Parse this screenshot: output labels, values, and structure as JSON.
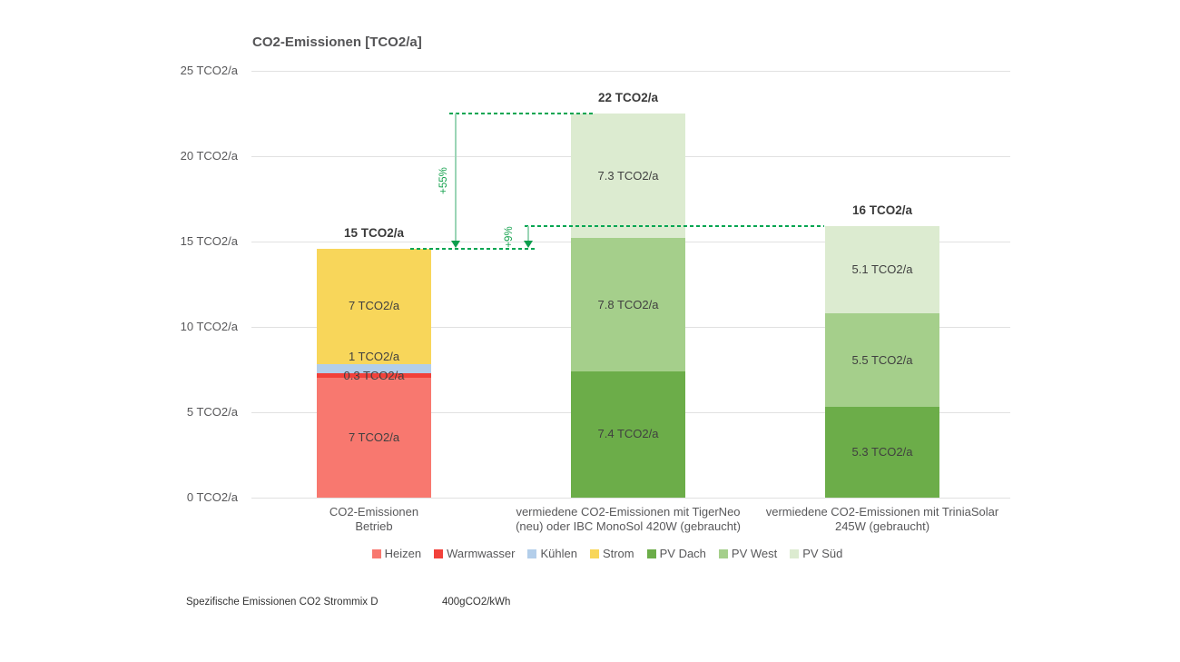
{
  "chart_data": {
    "type": "bar",
    "stacked": true,
    "title": "CO2-Emissionen [TCO2/a]",
    "unit": "TCO2/a",
    "y_axis": {
      "min": 0,
      "max": 25,
      "grid": true,
      "ticks": [
        {
          "value": 0,
          "label": "0 TCO2/a"
        },
        {
          "value": 5,
          "label": "5 TCO2/a"
        },
        {
          "value": 10,
          "label": "10 TCO2/a"
        },
        {
          "value": 15,
          "label": "15 TCO2/a"
        },
        {
          "value": 20,
          "label": "20 TCO2/a"
        },
        {
          "value": 25,
          "label": "25 TCO2/a"
        }
      ]
    },
    "legend": {
      "position": "bottom",
      "items": [
        {
          "name": "Heizen",
          "color": "#F8786F"
        },
        {
          "name": "Warmwasser",
          "color": "#F2413A"
        },
        {
          "name": "Kühlen",
          "color": "#B3CEEA"
        },
        {
          "name": "Strom",
          "color": "#F8D65A"
        },
        {
          "name": "PV Dach",
          "color": "#6CAD49"
        },
        {
          "name": "PV West",
          "color": "#A5CF8B"
        },
        {
          "name": "PV Süd",
          "color": "#DCEBD0"
        }
      ]
    },
    "bars": [
      {
        "category_lines": [
          "CO2-Emissionen",
          "Betrieb"
        ],
        "total_label": "15 TCO2/a",
        "segments": [
          {
            "name": "Heizen",
            "label": "7 TCO2/a",
            "value": 7,
            "plot_value": 7.0
          },
          {
            "name": "Warmwasser",
            "label": "0.3 TCO2/a",
            "value": 0.3,
            "plot_value": 0.3
          },
          {
            "name": "Kühlen",
            "label": "1 TCO2/a",
            "value": 1,
            "plot_value": 0.5,
            "label_pos": "above"
          },
          {
            "name": "Strom",
            "label": "7 TCO2/a",
            "value": 7,
            "plot_value": 6.8
          }
        ]
      },
      {
        "category_lines": [
          "vermiedene CO2-Emissionen mit TigerNeo",
          "(neu) oder IBC MonoSol 420W (gebraucht)"
        ],
        "total_label": "22 TCO2/a",
        "segments": [
          {
            "name": "PV Dach",
            "label": "7.4 TCO2/a",
            "value": 7.4
          },
          {
            "name": "PV West",
            "label": "7.8 TCO2/a",
            "value": 7.8
          },
          {
            "name": "PV Süd",
            "label": "7.3 TCO2/a",
            "value": 7.3
          }
        ]
      },
      {
        "category_lines": [
          "vermiedene CO2-Emissionen mit TriniaSolar",
          "245W (gebraucht)"
        ],
        "total_label": "16 TCO2/a",
        "segments": [
          {
            "name": "PV Dach",
            "label": "5.3 TCO2/a",
            "value": 5.3
          },
          {
            "name": "PV West",
            "label": "5.5 TCO2/a",
            "value": 5.5
          },
          {
            "name": "PV Süd",
            "label": "5.1 TCO2/a",
            "value": 5.1
          }
        ]
      }
    ],
    "annotations": [
      {
        "label": "+55%",
        "from_bar": 1,
        "to_bar": 0
      },
      {
        "label": "+9%",
        "from_bar": 2,
        "to_bar": 0
      }
    ],
    "annotation_color": "#00A551"
  },
  "footnotes": {
    "label": "Spezifische Emissionen CO2 Strommix D",
    "value": "400gCO2/kWh"
  }
}
